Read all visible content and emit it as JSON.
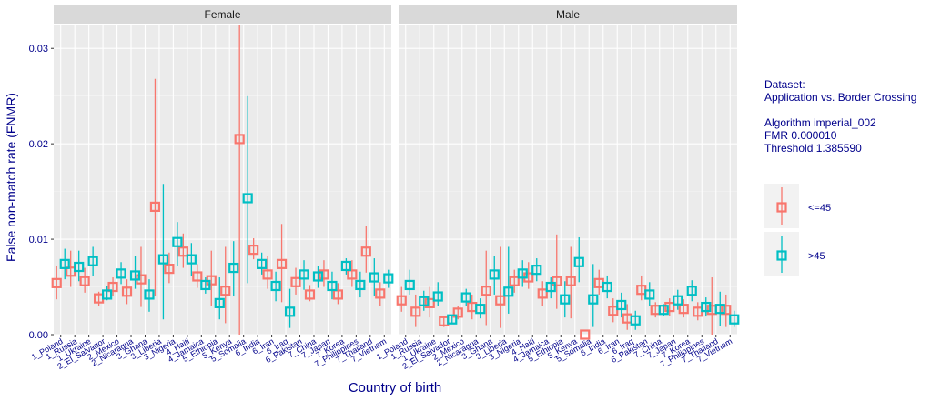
{
  "chart_data": {
    "type": "point-range",
    "ylabel": "False non-match rate (FNMR)",
    "xlabel": "Country of birth",
    "ylim": [
      0,
      0.0325
    ],
    "yticks": [
      0.0,
      0.01,
      0.02,
      0.03
    ],
    "ytick_labels": [
      "0.00",
      "0.01",
      "0.02",
      "0.03"
    ],
    "categories": [
      "1_Poland",
      "1_Russia",
      "1_Ukraine",
      "2_El_Salvador",
      "2_Mexico",
      "2_Nicaragua",
      "3_Ghana",
      "3_Liberia",
      "3_Nigeria",
      "4_Haiti",
      "4_Jamaica",
      "5_Ethiopia",
      "5_Kenya",
      "5_Somalia",
      "6_India",
      "6_Iran",
      "6_Iraq",
      "6_Pakistan",
      "7_China",
      "7_Japan",
      "7_Korea",
      "7_Philippines",
      "7_Thailand",
      "7_Vietnam"
    ],
    "colors": {
      "<=45": "#f8766d",
      ">45": "#00bfc4",
      "text": "#00008b",
      "panel": "#ebebeb",
      "strip": "#d9d9d9"
    },
    "panels": [
      {
        "label": "Female",
        "series": [
          {
            "name": "<=45",
            "values": [
              0.0054,
              0.0066,
              0.0056,
              0.0038,
              0.005,
              0.0045,
              0.0058,
              0.0134,
              0.0069,
              0.0087,
              0.0061,
              0.0057,
              0.0046,
              0.0205,
              0.0089,
              0.0063,
              0.0074,
              0.0055,
              0.0042,
              0.0063,
              0.0042,
              0.0063,
              0.0087,
              0.0043
            ],
            "lower": [
              0.0037,
              0.005,
              0.0044,
              0.003,
              0.004,
              0.0032,
              0.0029,
              0.004,
              0.0054,
              0.007,
              0.0049,
              0.003,
              0.0012,
              0.0,
              0.0079,
              0.0048,
              0.0034,
              0.0042,
              0.0035,
              0.005,
              0.0032,
              0.005,
              0.0065,
              0.003
            ],
            "upper": [
              0.0072,
              0.0088,
              0.007,
              0.0045,
              0.006,
              0.0058,
              0.0092,
              0.0268,
              0.0086,
              0.0106,
              0.0074,
              0.0088,
              0.0092,
              0.0325,
              0.0101,
              0.0082,
              0.0116,
              0.007,
              0.0052,
              0.0078,
              0.0054,
              0.0078,
              0.0114,
              0.0055
            ]
          },
          {
            "name": ">45",
            "values": [
              0.0074,
              0.0071,
              0.0077,
              0.0042,
              0.0064,
              0.0062,
              0.0042,
              0.0079,
              0.0097,
              0.0079,
              0.0052,
              0.0033,
              0.007,
              0.0143,
              0.0074,
              0.0051,
              0.0024,
              0.0063,
              0.0061,
              0.0051,
              0.0072,
              0.0052,
              0.006,
              0.0059
            ],
            "lower": [
              0.0058,
              0.0056,
              0.0061,
              0.0036,
              0.0053,
              0.0048,
              0.0024,
              0.0016,
              0.0072,
              0.0061,
              0.0043,
              0.0016,
              0.004,
              0.0054,
              0.0063,
              0.0035,
              0.0007,
              0.0047,
              0.0049,
              0.0037,
              0.0063,
              0.0039,
              0.004,
              0.0049
            ],
            "upper": [
              0.009,
              0.0088,
              0.0092,
              0.0051,
              0.0076,
              0.0082,
              0.0058,
              0.0158,
              0.0118,
              0.0096,
              0.006,
              0.006,
              0.0098,
              0.025,
              0.0086,
              0.0066,
              0.0048,
              0.0078,
              0.0072,
              0.0066,
              0.008,
              0.0066,
              0.008,
              0.0068
            ]
          }
        ]
      },
      {
        "label": "Male",
        "series": [
          {
            "name": "<=45",
            "values": [
              0.0036,
              0.0024,
              0.0033,
              0.0014,
              0.0023,
              0.0029,
              0.0046,
              0.0036,
              0.0056,
              0.006,
              0.0043,
              0.0056,
              0.0056,
              0.0,
              0.0054,
              0.0025,
              0.0017,
              0.0047,
              0.0026,
              0.0029,
              0.0027,
              0.0024,
              0.0026,
              0.0026
            ],
            "lower": [
              0.0024,
              0.0008,
              0.0018,
              0.0008,
              0.0016,
              0.0016,
              0.001,
              0.0007,
              0.0044,
              0.0048,
              0.003,
              0.0027,
              0.0017,
              0.0,
              0.0042,
              0.0013,
              0.0005,
              0.0036,
              0.0018,
              0.002,
              0.0018,
              0.0015,
              0.0,
              0.0008
            ],
            "upper": [
              0.005,
              0.0042,
              0.005,
              0.002,
              0.003,
              0.0042,
              0.0088,
              0.0092,
              0.0068,
              0.0076,
              0.0056,
              0.0105,
              0.0092,
              0.0,
              0.0068,
              0.0038,
              0.0032,
              0.0062,
              0.0034,
              0.0038,
              0.0037,
              0.0034,
              0.006,
              0.0042
            ]
          },
          {
            "name": ">45",
            "values": [
              0.0052,
              0.0035,
              0.004,
              0.0016,
              0.0039,
              0.0027,
              0.0063,
              0.0045,
              0.0064,
              0.0068,
              0.005,
              0.0037,
              0.0076,
              0.0037,
              0.005,
              0.0031,
              0.0015,
              0.0042,
              0.0026,
              0.0036,
              0.0046,
              0.0029,
              0.0027,
              0.0016
            ],
            "lower": [
              0.0042,
              0.0025,
              0.003,
              0.0012,
              0.003,
              0.0017,
              0.0042,
              0.0022,
              0.005,
              0.0056,
              0.0038,
              0.0018,
              0.0055,
              0.0008,
              0.0038,
              0.0018,
              0.0005,
              0.003,
              0.002,
              0.0026,
              0.0035,
              0.0019,
              0.0009,
              0.0008
            ],
            "upper": [
              0.0068,
              0.0046,
              0.0055,
              0.0021,
              0.0048,
              0.0038,
              0.0082,
              0.0092,
              0.0078,
              0.008,
              0.006,
              0.0056,
              0.0102,
              0.0074,
              0.0062,
              0.0044,
              0.0025,
              0.0055,
              0.0032,
              0.0047,
              0.0057,
              0.0039,
              0.0045,
              0.0025
            ]
          }
        ]
      }
    ],
    "legend": [
      {
        "key": "<=45",
        "label": "<=45"
      },
      {
        "key": ">45",
        "label": ">45"
      }
    ]
  },
  "side_info": {
    "dataset_label": "Dataset:",
    "dataset_name": "Application vs. Border Crossing",
    "algorithm": "Algorithm imperial_002",
    "fmr": "FMR 0.000010",
    "threshold": "Threshold 1.385590"
  }
}
